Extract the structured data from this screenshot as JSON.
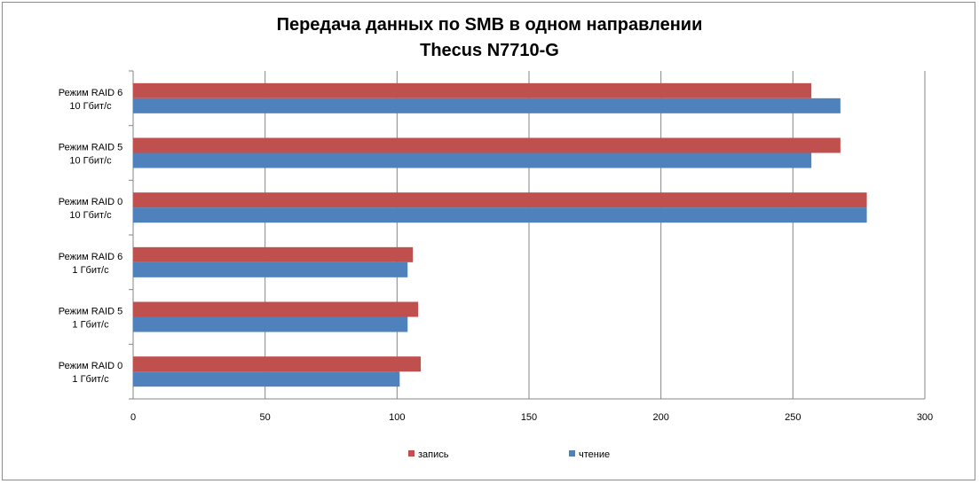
{
  "chart_data": {
    "type": "bar",
    "orientation": "horizontal",
    "title": "Передача данных по SMB в одном направлении",
    "subtitle": "Thecus N7710-G",
    "categories": [
      [
        "Режим RAID 6",
        "10 Гбит/с"
      ],
      [
        "Режим RAID 5",
        "10 Гбит/с"
      ],
      [
        "Режим RAID 0",
        "10 Гбит/с"
      ],
      [
        "Режим RAID 6",
        "1 Гбит/с"
      ],
      [
        "Режим RAID 5",
        "1 Гбит/с"
      ],
      [
        "Режим RAID 0",
        "1 Гбит/с"
      ]
    ],
    "series": [
      {
        "name": "запись",
        "color": "#c0504d",
        "values": [
          257,
          268,
          278,
          106,
          108,
          109
        ]
      },
      {
        "name": "чтение",
        "color": "#4f81bd",
        "values": [
          268,
          257,
          278,
          104,
          104,
          101
        ]
      }
    ],
    "xlim": [
      0,
      300
    ],
    "xticks": [
      0,
      50,
      100,
      150,
      200,
      250,
      300
    ],
    "grid": true,
    "legend_position": "bottom"
  }
}
